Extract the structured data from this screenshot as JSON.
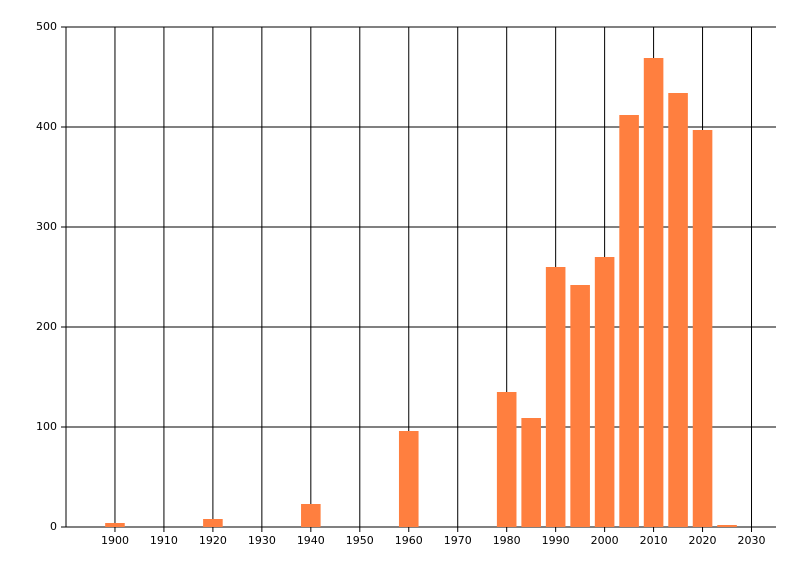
{
  "chart_data": {
    "type": "bar",
    "x": [
      1900,
      1920,
      1940,
      1960,
      1980,
      1985,
      1990,
      1995,
      2000,
      2005,
      2010,
      2015,
      2020,
      2025
    ],
    "values": [
      4,
      8,
      23,
      96,
      135,
      109,
      260,
      242,
      270,
      412,
      469,
      434,
      397,
      2
    ],
    "color": "#ff7f3f",
    "xlim": [
      1890,
      2035
    ],
    "ylim": [
      0,
      500
    ],
    "xticks": [
      1900,
      1910,
      1920,
      1930,
      1940,
      1950,
      1960,
      1970,
      1980,
      1990,
      2000,
      2010,
      2020,
      2030
    ],
    "yticks": [
      0,
      100,
      200,
      300,
      400,
      500
    ],
    "grid": true
  }
}
